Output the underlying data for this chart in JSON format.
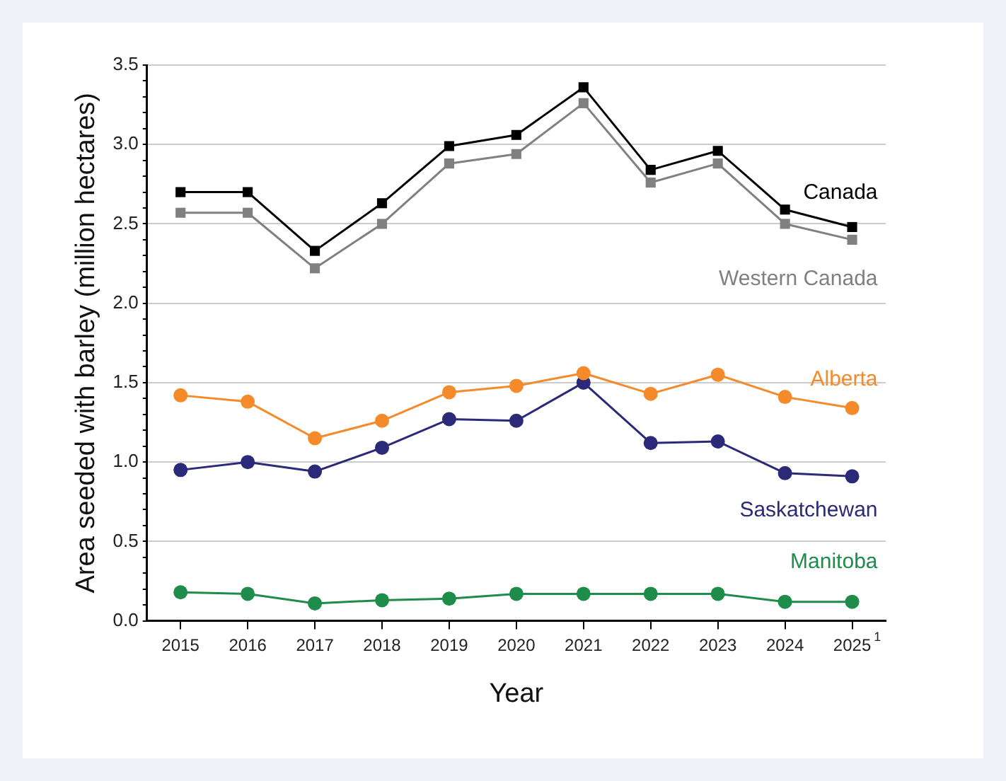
{
  "chart_data": {
    "type": "line",
    "xlabel": "Year",
    "ylabel": "Area seeded with barley (million hectares)",
    "categories": [
      "2015",
      "2016",
      "2017",
      "2018",
      "2019",
      "2020",
      "2021",
      "2022",
      "2023",
      "2024",
      "2025$^{1}$"
    ],
    "series": [
      {
        "name": "Canada",
        "color": "#000000",
        "marker": "square",
        "values": [
          2.7,
          2.7,
          2.33,
          2.63,
          2.99,
          3.06,
          3.36,
          2.84,
          2.96,
          2.59,
          2.48
        ]
      },
      {
        "name": "Western Canada",
        "color": "#808080",
        "marker": "square",
        "values": [
          2.57,
          2.57,
          2.22,
          2.5,
          2.88,
          2.94,
          3.26,
          2.76,
          2.88,
          2.5,
          2.4
        ]
      },
      {
        "name": "Alberta",
        "color": "#f58a2a",
        "marker": "circle",
        "values": [
          1.42,
          1.38,
          1.15,
          1.26,
          1.44,
          1.48,
          1.56,
          1.43,
          1.55,
          1.41,
          1.34
        ]
      },
      {
        "name": "Saskatchewan",
        "color": "#2b2a78",
        "marker": "circle",
        "values": [
          0.95,
          1.0,
          0.94,
          1.09,
          1.27,
          1.26,
          1.5,
          1.12,
          1.13,
          0.93,
          0.91
        ]
      },
      {
        "name": "Manitoba",
        "color": "#1e8c4a",
        "marker": "circle",
        "values": [
          0.18,
          0.17,
          0.11,
          0.13,
          0.14,
          0.17,
          0.17,
          0.17,
          0.17,
          0.12,
          0.12
        ]
      }
    ],
    "ylim": [
      0,
      3.5
    ],
    "yticks": [
      {
        "value": 0,
        "label": "0.0"
      },
      {
        "value": 0.1,
        "label": null
      },
      {
        "value": 0.2,
        "label": null
      },
      {
        "value": 0.3,
        "label": null
      },
      {
        "value": 0.4,
        "label": null
      },
      {
        "value": 0.5,
        "label": "0.5"
      },
      {
        "value": 0.6,
        "label": null
      },
      {
        "value": 0.7,
        "label": null
      },
      {
        "value": 0.8,
        "label": null
      },
      {
        "value": 0.9,
        "label": null
      },
      {
        "value": 1,
        "label": "1.0"
      },
      {
        "value": 1.1,
        "label": null
      },
      {
        "value": 1.2,
        "label": null
      },
      {
        "value": 1.3,
        "label": null
      },
      {
        "value": 1.4,
        "label": null
      },
      {
        "value": 1.5,
        "label": "1.5"
      },
      {
        "value": 1.6,
        "label": null
      },
      {
        "value": 1.7,
        "label": null
      },
      {
        "value": 1.8,
        "label": null
      },
      {
        "value": 1.9,
        "label": null
      },
      {
        "value": 2,
        "label": "2.0"
      },
      {
        "value": 2.1,
        "label": null
      },
      {
        "value": 2.2,
        "label": null
      },
      {
        "value": 2.3,
        "label": null
      },
      {
        "value": 2.4,
        "label": null
      },
      {
        "value": 2.5,
        "label": "2.5"
      },
      {
        "value": 2.6,
        "label": null
      },
      {
        "value": 2.7,
        "label": null
      },
      {
        "value": 2.8,
        "label": null
      },
      {
        "value": 2.9,
        "label": null
      },
      {
        "value": 3,
        "label": "3.0"
      },
      {
        "value": 3.1,
        "label": null
      },
      {
        "value": 3.2,
        "label": null
      },
      {
        "value": 3.3,
        "label": null
      },
      {
        "value": 3.4,
        "label": null
      },
      {
        "value": 3.5,
        "label": "3.5"
      }
    ],
    "grid": "y",
    "legend": false,
    "line_style": "solid"
  }
}
